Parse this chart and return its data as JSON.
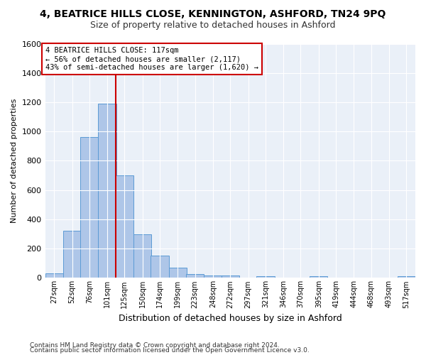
{
  "title1": "4, BEATRICE HILLS CLOSE, KENNINGTON, ASHFORD, TN24 9PQ",
  "title2": "Size of property relative to detached houses in Ashford",
  "xlabel": "Distribution of detached houses by size in Ashford",
  "ylabel": "Number of detached properties",
  "footnote1": "Contains HM Land Registry data © Crown copyright and database right 2024.",
  "footnote2": "Contains public sector information licensed under the Open Government Licence v3.0.",
  "annotation_line1": "4 BEATRICE HILLS CLOSE: 117sqm",
  "annotation_line2": "← 56% of detached houses are smaller (2,117)",
  "annotation_line3": "43% of semi-detached houses are larger (1,620) →",
  "bar_color": "#aec6e8",
  "bar_edge_color": "#5b9bd5",
  "vline_color": "#cc0000",
  "vline_x": 125,
  "categories": [
    "27sqm",
    "52sqm",
    "76sqm",
    "101sqm",
    "125sqm",
    "150sqm",
    "174sqm",
    "199sqm",
    "223sqm",
    "248sqm",
    "272sqm",
    "297sqm",
    "321sqm",
    "346sqm",
    "370sqm",
    "395sqm",
    "419sqm",
    "444sqm",
    "468sqm",
    "493sqm",
    "517sqm"
  ],
  "bin_edges": [
    27,
    52,
    76,
    101,
    125,
    150,
    174,
    199,
    223,
    248,
    272,
    297,
    321,
    346,
    370,
    395,
    419,
    444,
    468,
    493,
    517
  ],
  "bin_width": 25,
  "bar_heights": [
    30,
    320,
    960,
    1190,
    700,
    300,
    150,
    70,
    25,
    15,
    15,
    0,
    10,
    0,
    0,
    10,
    0,
    0,
    0,
    0,
    10
  ],
  "ylim": [
    0,
    1600
  ],
  "yticks": [
    0,
    200,
    400,
    600,
    800,
    1000,
    1200,
    1400,
    1600
  ],
  "bg_color": "#eaf0f8",
  "grid_color": "#ffffff",
  "title1_fontsize": 10,
  "title2_fontsize": 9
}
